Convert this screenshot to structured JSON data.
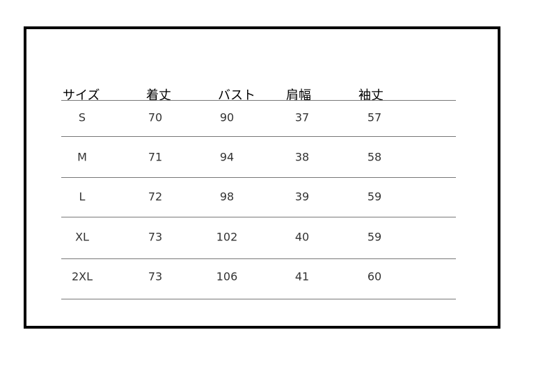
{
  "table": {
    "headers": [
      "サイズ",
      "着丈",
      "バスト",
      "肩幅",
      "袖丈"
    ],
    "rows": [
      [
        "S",
        "70",
        "90",
        "37",
        "57"
      ],
      [
        "M",
        "71",
        "94",
        "38",
        "58"
      ],
      [
        "L",
        "72",
        "98",
        "39",
        "59"
      ],
      [
        "XL",
        "73",
        "102",
        "40",
        "59"
      ],
      [
        "2XL",
        "73",
        "106",
        "41",
        "60"
      ]
    ]
  }
}
